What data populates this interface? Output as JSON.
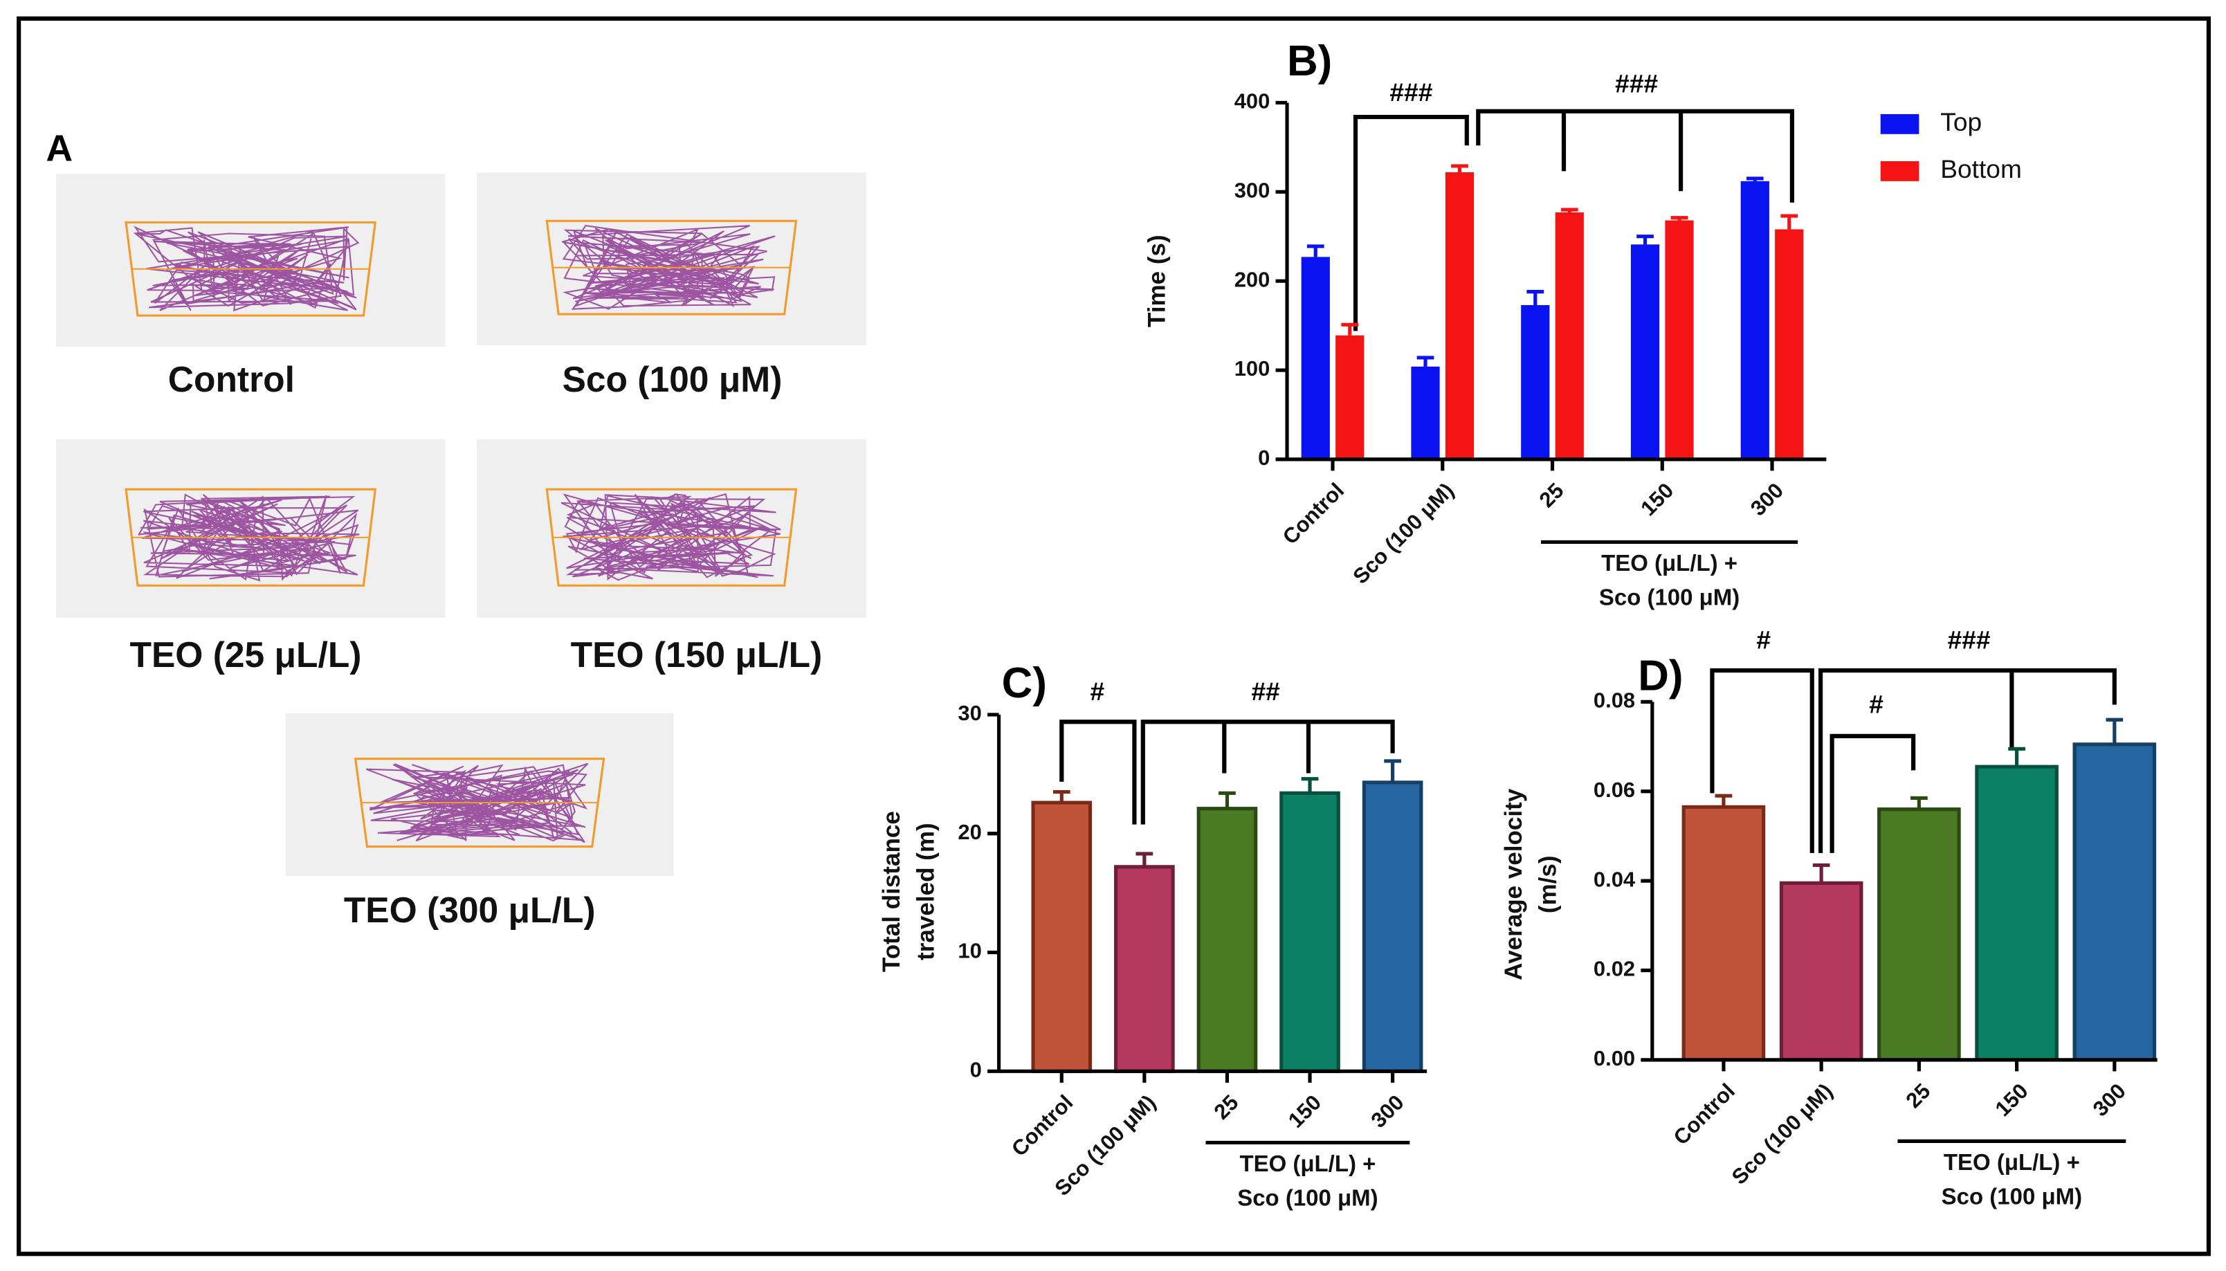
{
  "panel_a": {
    "label": "A",
    "captions": [
      "Control",
      "Sco (100 μM)",
      "TEO (25 μL/L)",
      "TEO (150 μL/L)",
      "TEO (300 μL/L)"
    ]
  },
  "chart_data": [
    {
      "type": "bar",
      "title": "B)",
      "y_label": [
        "Time (s)"
      ],
      "categories": [
        "Control",
        "Sco (100 μM)",
        "25",
        "150",
        "300"
      ],
      "group_label": [
        "TEO (μL/L) +",
        "Sco (100 μM)"
      ],
      "series": [
        {
          "name": "Top",
          "color": "#0a14f0",
          "values": [
            227,
            104,
            173,
            241,
            312
          ],
          "errors": [
            12,
            10,
            15,
            9,
            3
          ]
        },
        {
          "name": "Bottom",
          "color": "#f51414",
          "values": [
            139,
            322,
            277,
            268,
            258
          ],
          "errors": [
            12,
            7,
            3,
            3,
            15
          ]
        }
      ],
      "ylim": [
        0,
        400
      ],
      "yticks": [
        0,
        100,
        200,
        300,
        400
      ],
      "legend": "upper right",
      "annotations": [
        "###",
        "###"
      ]
    },
    {
      "type": "bar",
      "title": "C)",
      "y_label": [
        "Total distance",
        "traveled (m)"
      ],
      "categories": [
        "Control",
        "Sco (100 μM)",
        "25",
        "150",
        "300"
      ],
      "group_label": [
        "TEO (μL/L) +",
        "Sco (100 μM)"
      ],
      "values": [
        22.6,
        17.2,
        22.1,
        23.4,
        24.3
      ],
      "errors": [
        0.9,
        1.1,
        1.3,
        1.2,
        1.8
      ],
      "colors": [
        "#c0543a",
        "#b5395f",
        "#4a7a23",
        "#0b8065",
        "#2566a0"
      ],
      "edgecolors": [
        "#7a2a18",
        "#6e1d3a",
        "#2b4a12",
        "#05503e",
        "#143f66"
      ],
      "ylim": [
        0,
        30
      ],
      "yticks": [
        0,
        10,
        20,
        30
      ],
      "annotations": [
        "#",
        "##"
      ]
    },
    {
      "type": "bar",
      "title": "D)",
      "y_label": [
        "Average velocity",
        "(m/s)"
      ],
      "categories": [
        "Control",
        "Sco (100 μM)",
        "25",
        "150",
        "300"
      ],
      "group_label": [
        "TEO (μL/L) +",
        "Sco (100 μM)"
      ],
      "values": [
        0.0565,
        0.0395,
        0.056,
        0.0655,
        0.0705
      ],
      "errors": [
        0.0025,
        0.004,
        0.0025,
        0.004,
        0.0055
      ],
      "colors": [
        "#c0543a",
        "#b5395f",
        "#4a7a23",
        "#0b8065",
        "#2566a0"
      ],
      "edgecolors": [
        "#7a2a18",
        "#6e1d3a",
        "#2b4a12",
        "#05503e",
        "#143f66"
      ],
      "ylim": [
        0,
        0.08
      ],
      "yticks": [
        {
          "value": 0,
          "label": "0.00"
        },
        {
          "value": 0.02,
          "label": "0.02"
        },
        {
          "value": 0.04,
          "label": "0.04"
        },
        {
          "value": 0.06,
          "label": "0.06"
        },
        {
          "value": 0.08,
          "label": "0.08"
        }
      ],
      "annotations": [
        "#",
        "#",
        "###"
      ]
    }
  ]
}
